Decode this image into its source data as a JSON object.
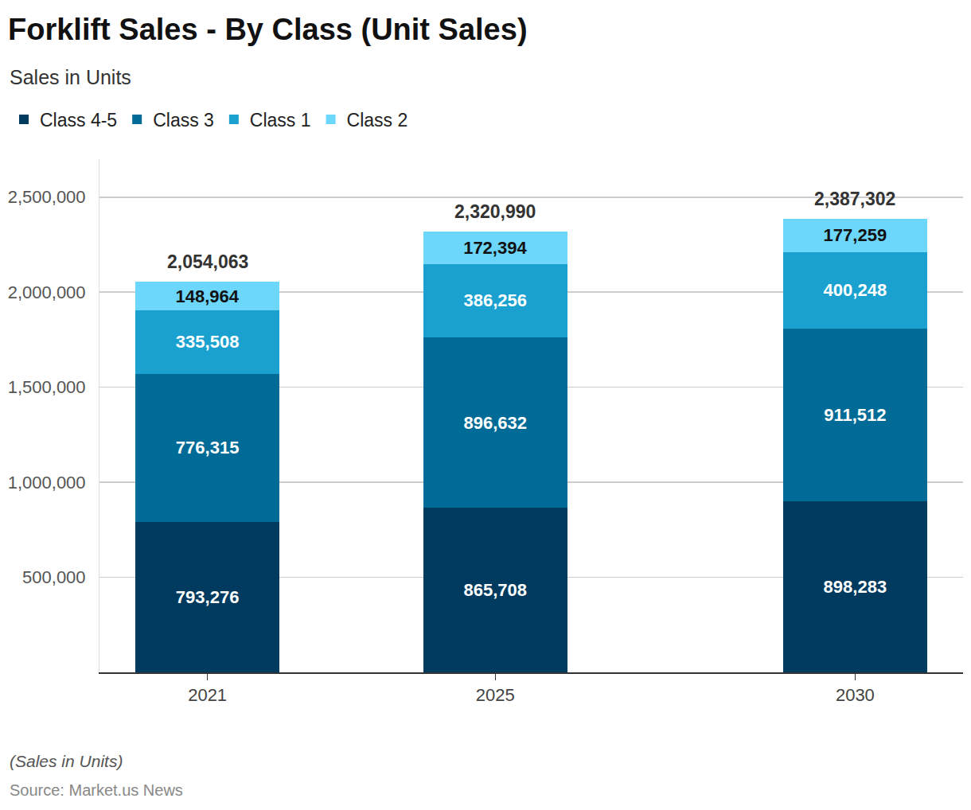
{
  "chart_data": {
    "type": "bar",
    "title": "Forklift Sales - By Class (Unit Sales)",
    "subtitle": "Sales in Units",
    "note": "(Sales in Units)",
    "source": "Source: Market.us News",
    "x": [
      2021,
      2025,
      2030
    ],
    "xlim": [
      2019.5,
      2031.5
    ],
    "xticks": [
      2021,
      2025,
      2030
    ],
    "ylim": [
      0,
      2700000
    ],
    "yticks": [
      {
        "value": 500000,
        "label": "500,000"
      },
      {
        "value": 1000000,
        "label": "1,000,000"
      },
      {
        "value": 1500000,
        "label": "1,500,000"
      },
      {
        "value": 2000000,
        "label": "2,000,000"
      },
      {
        "value": 2500000,
        "label": "2,500,000"
      }
    ],
    "grid": true,
    "stacked": true,
    "data_labels": true,
    "legend": "top-left",
    "series": [
      {
        "name": "Class 4-5",
        "color": "#003a5e",
        "values": [
          793276,
          865708,
          898283
        ],
        "value_labels": [
          "793,276",
          "865,708",
          "898,283"
        ]
      },
      {
        "name": "Class 3",
        "color": "#006b96",
        "values": [
          776315,
          896632,
          911512
        ],
        "value_labels": [
          "776,315",
          "896,632",
          "911,512"
        ]
      },
      {
        "name": "Class 1",
        "color": "#1aa1cf",
        "values": [
          335508,
          386256,
          400248
        ],
        "value_labels": [
          "335,508",
          "386,256",
          "400,248"
        ]
      },
      {
        "name": "Class 2",
        "color": "#6dd6fb",
        "values": [
          148964,
          172394,
          177259
        ],
        "value_labels": [
          "148,964",
          "172,394",
          "177,259"
        ]
      }
    ],
    "totals": [
      2054063,
      2320990,
      2387302
    ],
    "total_labels": [
      "2,054,063",
      "2,320,990",
      "2,387,302"
    ]
  }
}
